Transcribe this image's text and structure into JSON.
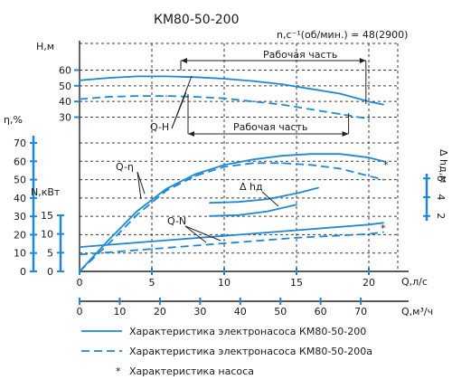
{
  "chart_data": {
    "type": "line",
    "title": "КМ80-50-200",
    "speed_label": "n,с⁻¹(об/мин.) = 48(2900)",
    "colors": {
      "curve": "#1e88d6",
      "axis": "#222222",
      "grid": "#3a3a3a",
      "text": "#1a1a1a"
    },
    "x_axes": [
      {
        "label": "Q,л/с",
        "ticks": [
          0,
          5,
          10,
          15,
          20
        ],
        "range": [
          0,
          22
        ]
      },
      {
        "label": "Q,м³/ч",
        "ticks": [
          0,
          10,
          20,
          30,
          40,
          50,
          60,
          70
        ],
        "range": [
          0,
          79.2
        ]
      }
    ],
    "y_axes": {
      "H": {
        "label": "H,м",
        "ticks": [
          30,
          40,
          50,
          60
        ],
        "range": [
          28,
          62
        ]
      },
      "eta": {
        "label": "η,%",
        "ticks": [
          0,
          10,
          20,
          30,
          40,
          50,
          60,
          70
        ],
        "range": [
          0,
          70
        ]
      },
      "N": {
        "label": "N,кВт",
        "ticks": [
          0,
          5,
          10,
          15
        ],
        "range": [
          0,
          15
        ]
      },
      "dh": {
        "label": "Δ hд,м",
        "ticks": [
          2,
          4,
          6
        ],
        "range": [
          1.5,
          6.5
        ]
      }
    },
    "labels": {
      "qh": "Q-H",
      "qeta": "Q-η",
      "qn": "Q-N",
      "dh": "Δ hд",
      "work_zone": "Рабочая часть",
      "work_zone_a": "Рабочая часть",
      "star": "*"
    },
    "work_zone_q": [
      7,
      19.8
    ],
    "work_zone_a_q": [
      7.5,
      18.6
    ],
    "series": [
      {
        "name": "Q-H",
        "axis": "H",
        "style": "solid",
        "x": [
          0,
          2,
          4,
          6,
          8,
          10,
          12,
          14,
          16,
          18,
          20,
          21
        ],
        "y": [
          53.5,
          55,
          56,
          56,
          55.5,
          54.5,
          53,
          51,
          48,
          45,
          40,
          38
        ]
      },
      {
        "name": "Q-H (КМ80-50-200а)",
        "axis": "H",
        "style": "dashed",
        "x": [
          0,
          2,
          4,
          6,
          8,
          10,
          12,
          14,
          16,
          18,
          20
        ],
        "y": [
          41.5,
          43,
          43.5,
          43.5,
          43,
          42,
          40,
          38,
          35,
          32,
          29
        ]
      },
      {
        "name": "Q-η",
        "axis": "eta",
        "style": "solid",
        "x": [
          0,
          2,
          4,
          6,
          8,
          10,
          12,
          14,
          16,
          17,
          18,
          20,
          21
        ],
        "y": [
          0,
          17,
          33,
          45,
          53,
          58,
          61,
          63,
          64,
          64,
          64,
          62,
          60
        ]
      },
      {
        "name": "Q-η (КМ80-50-200а)",
        "axis": "eta",
        "style": "dashed",
        "x": [
          0,
          2,
          4,
          6,
          8,
          10,
          12,
          14,
          16,
          18,
          20,
          21
        ],
        "y": [
          0,
          15,
          31,
          44,
          52,
          57,
          59,
          59,
          58,
          56,
          52,
          50
        ]
      },
      {
        "name": "Q-N",
        "axis": "N",
        "style": "solid",
        "x": [
          0,
          5,
          10,
          15,
          20,
          21
        ],
        "y": [
          6.5,
          8,
          9.5,
          11,
          12.5,
          13
        ]
      },
      {
        "name": "Q-N (КМ80-50-200а)",
        "axis": "N",
        "style": "dashed",
        "x": [
          0,
          5,
          10,
          15,
          20,
          21
        ],
        "y": [
          4.5,
          6,
          7.5,
          9,
          10,
          10.5
        ]
      },
      {
        "name": "Δ hд",
        "axis": "dh",
        "style": "solid",
        "x": [
          9,
          11,
          13,
          15,
          16.5
        ],
        "y": [
          3.4,
          3.5,
          3.8,
          4.4,
          5.0
        ]
      },
      {
        "name": "Δ hд (КМ80-50-200а)",
        "axis": "dh",
        "style": "solid",
        "x": [
          9,
          11,
          13,
          15
        ],
        "y": [
          2.0,
          2.1,
          2.5,
          3.2
        ]
      }
    ],
    "legend": [
      {
        "style": "solid",
        "text": "Характеристика электронасоса КМ80-50-200"
      },
      {
        "style": "dashed",
        "text": "Характеристика электронасоса КМ80-50-200а"
      },
      {
        "style": "star",
        "text": "Характеристика насоса"
      }
    ]
  }
}
